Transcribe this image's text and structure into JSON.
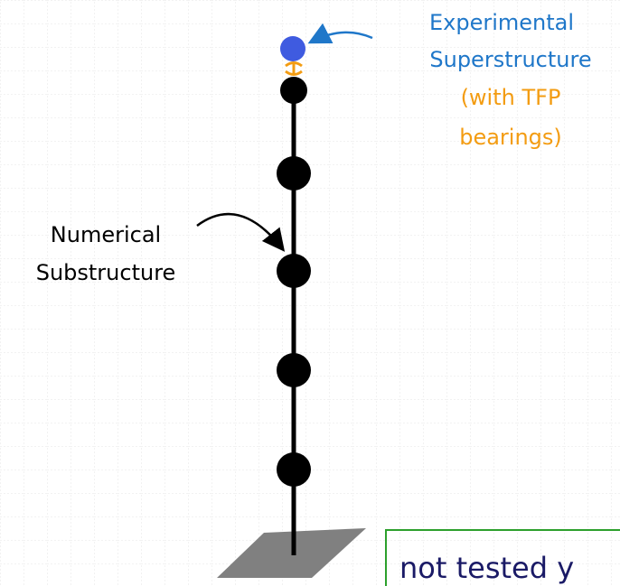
{
  "labels": {
    "experimental_line1": "Experimental",
    "experimental_line2": "Superstructure",
    "tfp_line1": "(with TFP",
    "tfp_line2": "bearings)",
    "numerical_line1": "Numerical",
    "numerical_line2": "Substructure",
    "note": "not tested y"
  }
}
